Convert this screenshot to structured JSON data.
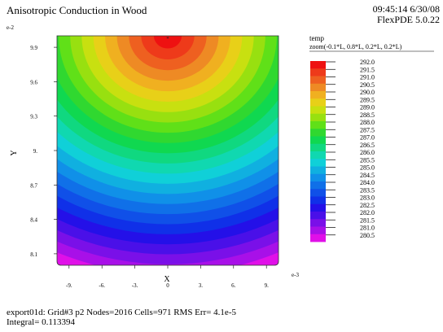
{
  "header": {
    "title": "Anisotropic Conduction in Wood",
    "timestamp": "09:45:14 6/30/08",
    "program": "FlexPDE 5.0.22"
  },
  "legend": {
    "title": "temp",
    "subtitle": "zoom(-0.1*L, 0.8*L, 0.2*L, 0.2*L)"
  },
  "footer": {
    "line1": "export01d:  Grid#3  p2  Nodes=2016 Cells=971 RMS Err= 4.1e-5",
    "line2": "Integral=  0.113394"
  },
  "chart_data": {
    "type": "heatmap",
    "title": "Anisotropic Conduction in Wood",
    "xlabel": "X",
    "ylabel": "Y",
    "x_exponent": "e-3",
    "y_exponent": "e-2",
    "xlim": [
      -0.0101,
      0.0101
    ],
    "ylim": [
      0.08,
      0.1
    ],
    "x_ticks": [
      {
        "value": -0.009,
        "label": "-9."
      },
      {
        "value": -0.006,
        "label": "-6."
      },
      {
        "value": -0.003,
        "label": "-3."
      },
      {
        "value": 0.0,
        "label": "0"
      },
      {
        "value": 0.003,
        "label": "3."
      },
      {
        "value": 0.006,
        "label": "6."
      },
      {
        "value": 0.009,
        "label": "9."
      }
    ],
    "y_ticks": [
      {
        "value": 0.081,
        "label": "8.1"
      },
      {
        "value": 0.084,
        "label": "8.4"
      },
      {
        "value": 0.087,
        "label": "8.7"
      },
      {
        "value": 0.09,
        "label": "9."
      },
      {
        "value": 0.093,
        "label": "9.3"
      },
      {
        "value": 0.096,
        "label": "9.6"
      },
      {
        "value": 0.099,
        "label": "9.9"
      }
    ],
    "hot_spot": {
      "x": 0.0,
      "y": 0.1,
      "value": 292.0
    },
    "min_value": 280.5,
    "max_value": 292.0,
    "levels": [
      {
        "value": 292.0,
        "label": "292.0",
        "color": "#ee1111"
      },
      {
        "value": 291.5,
        "label": "291.5",
        "color": "#ee3a1a"
      },
      {
        "value": 291.0,
        "label": "291.0",
        "color": "#ee6020"
      },
      {
        "value": 290.5,
        "label": "290.5",
        "color": "#ee8a24"
      },
      {
        "value": 290.0,
        "label": "290.0",
        "color": "#f0b020"
      },
      {
        "value": 289.5,
        "label": "289.5",
        "color": "#e8d018"
      },
      {
        "value": 289.0,
        "label": "289.0",
        "color": "#c8e010"
      },
      {
        "value": 288.5,
        "label": "288.5",
        "color": "#98e010"
      },
      {
        "value": 288.0,
        "label": "288.0",
        "color": "#60e018"
      },
      {
        "value": 287.5,
        "label": "287.5",
        "color": "#30d830"
      },
      {
        "value": 287.0,
        "label": "287.0",
        "color": "#10d850"
      },
      {
        "value": 286.5,
        "label": "286.5",
        "color": "#10d880"
      },
      {
        "value": 286.0,
        "label": "286.0",
        "color": "#10d8b0"
      },
      {
        "value": 285.5,
        "label": "285.5",
        "color": "#10d0d8"
      },
      {
        "value": 285.0,
        "label": "285.0",
        "color": "#10b0e0"
      },
      {
        "value": 284.5,
        "label": "284.5",
        "color": "#1090e8"
      },
      {
        "value": 284.0,
        "label": "284.0",
        "color": "#1070e8"
      },
      {
        "value": 283.5,
        "label": "283.5",
        "color": "#1050e8"
      },
      {
        "value": 283.0,
        "label": "283.0",
        "color": "#1030e8"
      },
      {
        "value": 282.5,
        "label": "282.5",
        "color": "#2410e8"
      },
      {
        "value": 282.0,
        "label": "282.0",
        "color": "#4a10e8"
      },
      {
        "value": 281.5,
        "label": "281.5",
        "color": "#7a10e8"
      },
      {
        "value": 281.0,
        "label": "281.0",
        "color": "#a810e8"
      },
      {
        "value": 280.5,
        "label": "280.5",
        "color": "#e010e8"
      }
    ]
  }
}
